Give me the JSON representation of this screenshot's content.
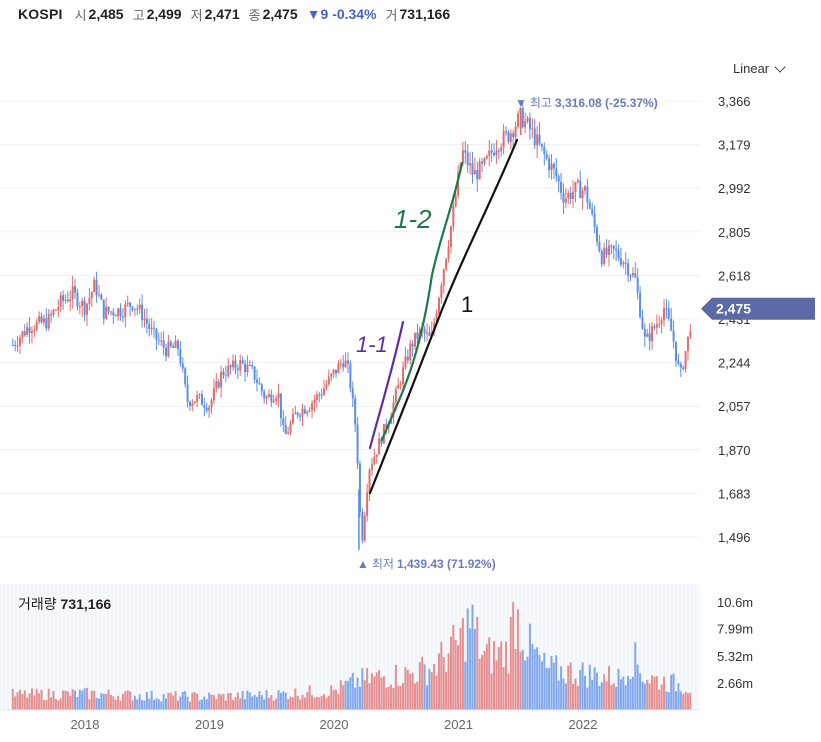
{
  "header": {
    "symbol": "KOSPI",
    "open_label": "시",
    "open_value": "2,485",
    "high_label": "고",
    "high_value": "2,499",
    "low_label": "저",
    "low_value": "2,471",
    "close_label": "종",
    "close_value": "2,475",
    "change_arrow": "▼",
    "change_value": "9",
    "change_pct": "-0.34%",
    "volume_label": "거",
    "volume_value": "731,166"
  },
  "scale_selector": {
    "label": "Linear"
  },
  "colors": {
    "up": "#e06c6c",
    "down": "#5b8ee6",
    "accent": "#6b7bbf",
    "badge": "#5b6aa6"
  },
  "chart_data": {
    "type": "candlestick",
    "x_tick_labels": [
      "2018",
      "2019",
      "2020",
      "2021",
      "2022"
    ],
    "y_tick_labels": [
      "3,366",
      "3,179",
      "2,992",
      "2,805",
      "2,618",
      "2,431",
      "2,244",
      "2,057",
      "1,870",
      "1,683",
      "1,496"
    ],
    "ylim": [
      1420,
      3400
    ],
    "current_price_label": "2,475",
    "current_price": 2475,
    "max_marker": {
      "arrow": "▼",
      "label": "최고",
      "value": "3,316.08 (-25.37%)",
      "price": 3316.08
    },
    "min_marker": {
      "arrow": "▲",
      "label": "최저",
      "value": "1,439.43 (71.92%)",
      "price": 1439.43
    },
    "price_anchors": [
      [
        2017.42,
        2320
      ],
      [
        2017.55,
        2400
      ],
      [
        2017.7,
        2420
      ],
      [
        2017.8,
        2500
      ],
      [
        2017.9,
        2540
      ],
      [
        2018.0,
        2480
      ],
      [
        2018.08,
        2580
      ],
      [
        2018.15,
        2460
      ],
      [
        2018.3,
        2470
      ],
      [
        2018.38,
        2500
      ],
      [
        2018.45,
        2460
      ],
      [
        2018.55,
        2360
      ],
      [
        2018.65,
        2300
      ],
      [
        2018.75,
        2310
      ],
      [
        2018.82,
        2080
      ],
      [
        2018.9,
        2090
      ],
      [
        2019.0,
        2060
      ],
      [
        2019.1,
        2200
      ],
      [
        2019.25,
        2240
      ],
      [
        2019.35,
        2200
      ],
      [
        2019.45,
        2090
      ],
      [
        2019.55,
        2120
      ],
      [
        2019.6,
        1920
      ],
      [
        2019.7,
        2030
      ],
      [
        2019.8,
        2060
      ],
      [
        2019.9,
        2120
      ],
      [
        2020.0,
        2200
      ],
      [
        2020.08,
        2260
      ],
      [
        2020.12,
        2200
      ],
      [
        2020.18,
        1940
      ],
      [
        2020.22,
        1460
      ],
      [
        2020.28,
        1790
      ],
      [
        2020.35,
        1880
      ],
      [
        2020.45,
        2020
      ],
      [
        2020.55,
        2200
      ],
      [
        2020.62,
        2320
      ],
      [
        2020.7,
        2380
      ],
      [
        2020.78,
        2340
      ],
      [
        2020.85,
        2560
      ],
      [
        2020.95,
        2860
      ],
      [
        2021.03,
        3150
      ],
      [
        2021.12,
        3050
      ],
      [
        2021.2,
        3080
      ],
      [
        2021.3,
        3180
      ],
      [
        2021.4,
        3220
      ],
      [
        2021.5,
        3300
      ],
      [
        2021.58,
        3240
      ],
      [
        2021.68,
        3140
      ],
      [
        2021.78,
        3050
      ],
      [
        2021.85,
        2950
      ],
      [
        2021.95,
        2990
      ],
      [
        2022.02,
        2980
      ],
      [
        2022.08,
        2850
      ],
      [
        2022.15,
        2700
      ],
      [
        2022.25,
        2720
      ],
      [
        2022.33,
        2680
      ],
      [
        2022.42,
        2600
      ],
      [
        2022.5,
        2330
      ],
      [
        2022.6,
        2420
      ],
      [
        2022.65,
        2480
      ],
      [
        2022.72,
        2360
      ],
      [
        2022.78,
        2180
      ],
      [
        2022.85,
        2360
      ],
      [
        2022.88,
        2475
      ]
    ],
    "volume_panel": {
      "title_label": "거래량",
      "title_value": "731,166",
      "y_tick_labels": [
        "10.6m",
        "7.99m",
        "5.32m",
        "2.66m"
      ],
      "ylim_m": [
        0,
        12
      ],
      "volume_anchors_m": [
        [
          2017.42,
          1.5
        ],
        [
          2018.0,
          1.6
        ],
        [
          2018.5,
          1.4
        ],
        [
          2019.0,
          1.3
        ],
        [
          2019.5,
          1.5
        ],
        [
          2020.0,
          1.9
        ],
        [
          2020.2,
          2.9
        ],
        [
          2020.4,
          3.3
        ],
        [
          2020.6,
          3.5
        ],
        [
          2020.8,
          4.2
        ],
        [
          2020.9,
          5.5
        ],
        [
          2021.0,
          6.5
        ],
        [
          2021.1,
          8.8
        ],
        [
          2021.2,
          5.2
        ],
        [
          2021.4,
          5.8
        ],
        [
          2021.45,
          9.8
        ],
        [
          2021.55,
          6.5
        ],
        [
          2021.7,
          4.0
        ],
        [
          2022.0,
          3.6
        ],
        [
          2022.3,
          3.1
        ],
        [
          2022.4,
          5.2
        ],
        [
          2022.5,
          3.2
        ],
        [
          2022.88,
          2.2
        ]
      ]
    },
    "annotations": [
      {
        "label": "1-1",
        "color": "#5a2ea6"
      },
      {
        "label": "1-2",
        "color": "#1f7a4a"
      },
      {
        "label": "1",
        "color": "#111111"
      }
    ]
  }
}
